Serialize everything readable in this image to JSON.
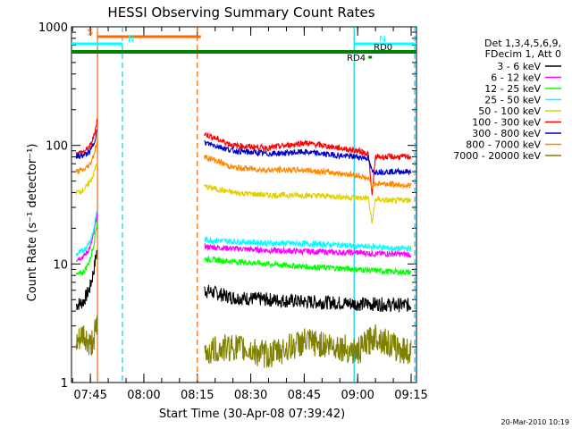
{
  "chart_data": {
    "type": "line",
    "title": "HESSI Observing Summary Count Rates",
    "xlabel": "Start Time (30-Apr-08 07:39:42)",
    "ylabel": "Count Rate (s⁻¹ detector⁻¹)",
    "xlim": [
      "07:39:42",
      "09:16:30"
    ],
    "x_ticks": [
      "07:45",
      "08:00",
      "08:15",
      "08:30",
      "08:45",
      "09:00",
      "09:15"
    ],
    "y_scale": "log",
    "ylim": [
      1,
      1000
    ],
    "y_ticks": [
      "1",
      "10",
      "100",
      "1000"
    ],
    "grid": false,
    "legend_position": "right",
    "legend_header": [
      "Det 1,3,4,5,6,9,",
      "FDecim 1, Att 0"
    ],
    "footer_timestamp": "20-Mar-2010 10:19",
    "series": [
      {
        "name": "3 - 6 keV",
        "color": "#000000",
        "segments": [
          {
            "t": [
              "07:41",
              "07:43",
              "07:44",
              "07:45",
              "07:46",
              "07:47"
            ],
            "v": [
              4.5,
              4.8,
              5.5,
              6.5,
              9,
              14
            ]
          },
          {
            "t": [
              "08:17",
              "08:25",
              "08:35",
              "08:45",
              "08:55",
              "09:00",
              "09:05",
              "09:10",
              "09:15"
            ],
            "v": [
              6,
              5.2,
              5,
              4.8,
              4.7,
              4.6,
              4.6,
              4.5,
              4.5
            ]
          }
        ]
      },
      {
        "name": "6 - 12 keV",
        "color": "#ff00ff",
        "segments": [
          {
            "t": [
              "07:41",
              "07:43",
              "07:44",
              "07:45",
              "07:46",
              "07:47"
            ],
            "v": [
              11,
              11.5,
              12.5,
              14,
              18,
              28
            ]
          },
          {
            "t": [
              "08:17",
              "08:25",
              "08:35",
              "08:45",
              "08:55",
              "09:00",
              "09:05",
              "09:10",
              "09:15"
            ],
            "v": [
              14,
              13.5,
              13,
              12.8,
              12.5,
              12.5,
              12.2,
              12.2,
              12
            ]
          }
        ]
      },
      {
        "name": "12 - 25 keV",
        "color": "#00ff00",
        "segments": [
          {
            "t": [
              "07:41",
              "07:43",
              "07:44",
              "07:45",
              "07:46",
              "07:47"
            ],
            "v": [
              8,
              8.5,
              9.5,
              11,
              15,
              24
            ]
          },
          {
            "t": [
              "08:17",
              "08:25",
              "08:35",
              "08:45",
              "08:55",
              "09:00",
              "09:05",
              "09:10",
              "09:15"
            ],
            "v": [
              11,
              10.5,
              10,
              9.5,
              9.2,
              9,
              8.8,
              8.6,
              8.5
            ]
          }
        ]
      },
      {
        "name": "25 - 50 keV",
        "color": "#00ffff",
        "segments": [
          {
            "t": [
              "07:41",
              "07:43",
              "07:44",
              "07:45",
              "07:46",
              "07:47"
            ],
            "v": [
              12,
              13,
              14,
              16,
              20,
              30
            ]
          },
          {
            "t": [
              "08:17",
              "08:25",
              "08:35",
              "08:45",
              "08:55",
              "09:00",
              "09:05",
              "09:10",
              "09:15"
            ],
            "v": [
              16,
              15.5,
              15,
              14.8,
              14.5,
              14,
              14,
              13.5,
              13.5
            ]
          }
        ]
      },
      {
        "name": "50 - 100 keV",
        "color": "#e0d000",
        "segments": [
          {
            "t": [
              "07:41",
              "07:43",
              "07:44",
              "07:45",
              "07:46",
              "07:47"
            ],
            "v": [
              40,
              42,
              45,
              50,
              58,
              75
            ]
          },
          {
            "t": [
              "08:17",
              "08:25",
              "08:35",
              "08:45",
              "08:55",
              "09:00",
              "09:03",
              "09:04",
              "09:05",
              "09:10",
              "09:15"
            ],
            "v": [
              45,
              40,
              38,
              38,
              37,
              36,
              36,
              22,
              35,
              34,
              35
            ]
          }
        ]
      },
      {
        "name": "100 - 300 keV",
        "color": "#ff0000",
        "segments": [
          {
            "t": [
              "07:41",
              "07:43",
              "07:44",
              "07:45",
              "07:46",
              "07:47"
            ],
            "v": [
              85,
              88,
              92,
              100,
              120,
              170
            ]
          },
          {
            "t": [
              "08:17",
              "08:20",
              "08:25",
              "08:35",
              "08:45",
              "08:50",
              "08:55",
              "09:00",
              "09:03",
              "09:04",
              "09:05",
              "09:10",
              "09:15"
            ],
            "v": [
              125,
              115,
              100,
              95,
              105,
              100,
              95,
              90,
              85,
              38,
              80,
              80,
              80
            ]
          }
        ]
      },
      {
        "name": "300 - 800 keV",
        "color": "#0000cc",
        "segments": [
          {
            "t": [
              "07:41",
              "07:43",
              "07:44",
              "07:45",
              "07:46",
              "07:47"
            ],
            "v": [
              80,
              82,
              85,
              90,
              105,
              140
            ]
          },
          {
            "t": [
              "08:17",
              "08:20",
              "08:25",
              "08:35",
              "08:45",
              "08:55",
              "09:00",
              "09:03",
              "09:04",
              "09:05",
              "09:10",
              "09:15"
            ],
            "v": [
              105,
              100,
              90,
              85,
              88,
              82,
              80,
              78,
              60,
              60,
              60,
              60
            ]
          }
        ]
      },
      {
        "name": "800 - 7000 keV",
        "color": "#ff8800",
        "segments": [
          {
            "t": [
              "07:41",
              "07:43",
              "07:44",
              "07:45",
              "07:46",
              "07:47"
            ],
            "v": [
              60,
              62,
              65,
              70,
              85,
              110
            ]
          },
          {
            "t": [
              "08:17",
              "08:20",
              "08:25",
              "08:35",
              "08:45",
              "08:55",
              "09:00",
              "09:03",
              "09:04",
              "09:05",
              "09:10",
              "09:15"
            ],
            "v": [
              80,
              75,
              65,
              62,
              62,
              58,
              56,
              52,
              45,
              48,
              47,
              46
            ]
          }
        ]
      },
      {
        "name": "7000 - 20000 keV",
        "color": "#808000",
        "segments": [
          {
            "t": [
              "07:41",
              "07:43",
              "07:45",
              "07:47"
            ],
            "v": [
              2,
              2.5,
              2,
              3
            ]
          },
          {
            "t": [
              "08:17",
              "08:25",
              "08:35",
              "08:45",
              "08:55",
              "09:00",
              "09:05",
              "09:10",
              "09:15"
            ],
            "v": [
              1.8,
              2,
              1.7,
              2.2,
              2,
              1.8,
              2.5,
              2,
              1.8
            ]
          }
        ]
      }
    ],
    "flags": [
      {
        "name": "S",
        "color": "#ff6600",
        "start": "07:47",
        "end": "08:16"
      },
      {
        "name": "N",
        "color": "#00ffff",
        "start": "07:39:42",
        "end": "07:54"
      },
      {
        "name": "N",
        "color": "#00ffff",
        "start": "08:59",
        "end": "09:16:30"
      },
      {
        "name": "",
        "color": "#008000",
        "start": "07:39:42",
        "end": "09:16:30"
      },
      {
        "name": "RD4",
        "color": "#008000",
        "start": "09:03",
        "end": "09:04"
      },
      {
        "name": "RD0",
        "color": "#008000",
        "start": "09:04",
        "end": "09:05"
      }
    ],
    "vlines": [
      {
        "t": "07:47",
        "color": "#ff6600",
        "style": "solid"
      },
      {
        "t": "07:54",
        "color": "#00ccff",
        "style": "dashed"
      },
      {
        "t": "08:15",
        "color": "#ff6600",
        "style": "dashed"
      },
      {
        "t": "08:59",
        "color": "#00ccff",
        "style": "solid"
      },
      {
        "t": "09:16",
        "color": "#00ccff",
        "style": "dashed"
      }
    ]
  }
}
